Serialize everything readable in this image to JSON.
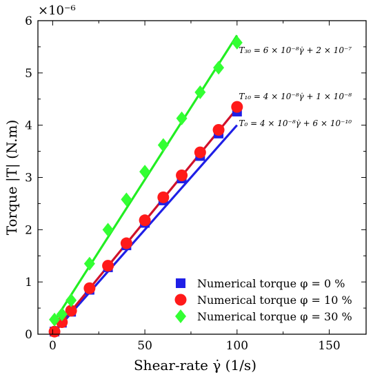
{
  "chart_data": {
    "type": "scatter",
    "xlabel": "Shear-rate γ̇ (1/s)",
    "ylabel": "Torque |T| (N.m)",
    "y_exponent_label": "×10⁻⁶",
    "xlim": [
      -8,
      170
    ],
    "ylim": [
      0,
      6
    ],
    "xticks": [
      0,
      50,
      100,
      150
    ],
    "yticks": [
      0,
      1,
      2,
      3,
      4,
      5,
      6
    ],
    "grid": false,
    "legend_position": "bottom-right",
    "series": [
      {
        "name": "Numerical torque φ = 0 %",
        "marker": "square",
        "color": "#1f1fe6",
        "x": [
          1,
          5,
          10,
          20,
          30,
          40,
          50,
          60,
          70,
          80,
          90,
          100
        ],
        "y": [
          0.05,
          0.22,
          0.43,
          0.85,
          1.28,
          1.7,
          2.13,
          2.56,
          2.98,
          3.41,
          3.84,
          4.26
        ],
        "fit": {
          "x": [
            0,
            100
          ],
          "y": [
            0.0006,
            4.0006
          ],
          "color": "#1f1fe6"
        }
      },
      {
        "name": "Numerical torque φ = 10 %",
        "marker": "circle",
        "color": "#ff1a1a",
        "x": [
          1,
          5,
          10,
          20,
          30,
          40,
          50,
          60,
          70,
          80,
          90,
          100
        ],
        "y": [
          0.05,
          0.23,
          0.45,
          0.88,
          1.31,
          1.74,
          2.18,
          2.62,
          3.04,
          3.48,
          3.91,
          4.35
        ],
        "fit": {
          "x": [
            0,
            100
          ],
          "y": [
            0.01,
            4.32
          ],
          "color": "#d0112b"
        }
      },
      {
        "name": "Numerical torque φ = 30 %",
        "marker": "diamond",
        "color": "#33ff33",
        "x": [
          1,
          5,
          10,
          20,
          30,
          40,
          50,
          60,
          70,
          80,
          90,
          100
        ],
        "y": [
          0.28,
          0.38,
          0.65,
          1.35,
          2.0,
          2.58,
          3.11,
          3.62,
          4.13,
          4.63,
          5.1,
          5.58
        ],
        "fit": {
          "x": [
            0,
            100
          ],
          "y": [
            0.2,
            5.72
          ],
          "color": "#22ee22"
        }
      }
    ],
    "annotations": [
      {
        "text": "T₃₀ = 6 × 10⁻⁸γ̇ + 2 × 10⁻⁷",
        "x": 101,
        "y": 5.38
      },
      {
        "text": "T₁₀ = 4 × 10⁻⁸γ̇ + 1 × 10⁻⁸",
        "x": 101,
        "y": 4.5
      },
      {
        "text": "T₀ = 4 × 10⁻⁸γ̇ + 6 × 10⁻¹⁰",
        "x": 101,
        "y": 3.98
      }
    ]
  }
}
